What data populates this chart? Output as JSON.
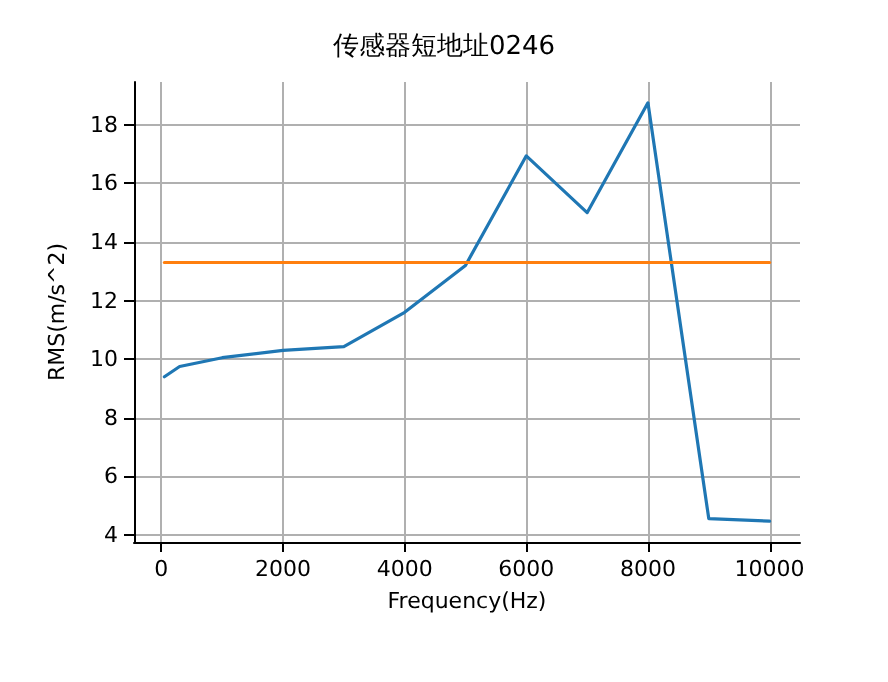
{
  "chart_data": {
    "type": "line",
    "title": "传感器短地址0246",
    "xlabel": "Frequency(Hz)",
    "ylabel": "RMS(m/s^2)",
    "series": [
      {
        "color": "#1f77b4",
        "x": [
          50,
          300,
          1000,
          2000,
          3000,
          4000,
          5000,
          6000,
          7000,
          8000,
          9000,
          10000
        ],
        "values": [
          9.4,
          9.75,
          10.05,
          10.3,
          10.43,
          11.6,
          13.2,
          16.94,
          15.0,
          18.75,
          4.56,
          4.47
        ]
      },
      {
        "color": "#ff7f0e",
        "x": [
          50,
          10000
        ],
        "values": [
          13.3,
          13.3
        ]
      }
    ],
    "xlim": [
      -450,
      10500
    ],
    "xticks": [
      0,
      2000,
      4000,
      6000,
      8000,
      10000
    ],
    "ylim": [
      3.76,
      19.46
    ],
    "yticks": [
      4,
      6,
      8,
      10,
      12,
      14,
      16,
      18
    ],
    "grid": true,
    "marker": "none",
    "line_style": "solid"
  }
}
